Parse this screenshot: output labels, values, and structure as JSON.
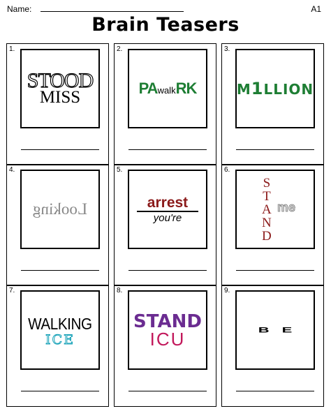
{
  "header": {
    "name_label": "Name:",
    "code": "A1",
    "title": "Brain Teasers"
  },
  "puzzles": [
    {
      "number": "1.",
      "line1": "STOOD",
      "line2": "MISS"
    },
    {
      "number": "2.",
      "left": "PA",
      "middle": "walk",
      "right": "RK"
    },
    {
      "number": "3.",
      "prefix": "M",
      "digit": "1",
      "suffix": "LLION"
    },
    {
      "number": "4.",
      "text": "Looking"
    },
    {
      "number": "5.",
      "top": "arrest",
      "bottom": "you're"
    },
    {
      "number": "6.",
      "letters": [
        "S",
        "T",
        "A",
        "N",
        "D"
      ],
      "side": "me"
    },
    {
      "number": "7.",
      "top": "WALKING",
      "bottom": "ICE"
    },
    {
      "number": "8.",
      "top": "STAND",
      "bottom": "ICU"
    },
    {
      "number": "9.",
      "text": "BE"
    }
  ],
  "colors": {
    "green": "#1e7e34",
    "maroon": "#8b1a1a",
    "purple": "#6b2c91",
    "magenta": "#c2185b",
    "teal": "#17a2b8"
  }
}
